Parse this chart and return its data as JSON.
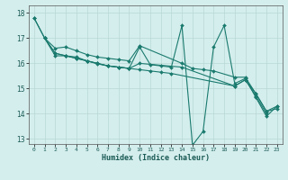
{
  "title": "",
  "xlabel": "Humidex (Indice chaleur)",
  "ylabel": "",
  "xlim": [
    -0.5,
    23.5
  ],
  "ylim": [
    12.8,
    18.3
  ],
  "yticks": [
    13,
    14,
    15,
    16,
    17,
    18
  ],
  "xticks": [
    0,
    1,
    2,
    3,
    4,
    5,
    6,
    7,
    8,
    9,
    10,
    11,
    12,
    13,
    14,
    15,
    16,
    17,
    18,
    19,
    20,
    21,
    22,
    23
  ],
  "bg_color": "#d4eeed",
  "line_color": "#1a7a6e",
  "grid_color": "#b8d8d4",
  "series": [
    {
      "x": [
        0,
        1,
        2,
        3,
        4,
        5,
        6,
        7,
        8,
        9,
        10,
        11,
        12,
        13,
        14,
        15,
        16,
        17,
        18,
        19,
        20,
        21,
        22,
        23
      ],
      "y": [
        17.8,
        17.0,
        16.4,
        16.3,
        16.2,
        16.1,
        16.0,
        15.9,
        15.85,
        15.8,
        16.65,
        15.95,
        15.9,
        15.85,
        17.5,
        12.75,
        13.3,
        16.65,
        17.5,
        15.2,
        15.4,
        14.65,
        13.9,
        14.3
      ]
    },
    {
      "x": [
        1,
        2,
        3,
        4,
        5,
        6,
        7,
        8,
        9,
        10,
        14,
        15,
        16,
        17,
        19,
        20,
        21,
        22,
        23
      ],
      "y": [
        17.0,
        16.6,
        16.65,
        16.5,
        16.35,
        16.25,
        16.2,
        16.15,
        16.1,
        16.7,
        16.0,
        15.8,
        15.75,
        15.7,
        15.45,
        15.45,
        14.8,
        14.1,
        14.3
      ]
    },
    {
      "x": [
        0,
        1,
        2,
        3,
        4,
        5,
        6,
        7,
        8,
        9,
        10,
        14,
        19,
        20,
        21,
        22,
        23
      ],
      "y": [
        17.8,
        17.0,
        16.3,
        16.3,
        16.2,
        16.1,
        16.0,
        15.9,
        15.85,
        15.8,
        16.0,
        15.85,
        15.1,
        15.35,
        14.8,
        14.1,
        14.2
      ]
    },
    {
      "x": [
        1,
        2,
        3,
        4,
        5,
        6,
        7,
        8,
        9,
        10,
        11,
        12,
        13,
        19,
        20,
        21,
        22
      ],
      "y": [
        17.0,
        16.4,
        16.3,
        16.25,
        16.1,
        15.98,
        15.9,
        15.85,
        15.8,
        15.75,
        15.7,
        15.65,
        15.6,
        15.1,
        15.35,
        14.7,
        14.0
      ]
    }
  ]
}
